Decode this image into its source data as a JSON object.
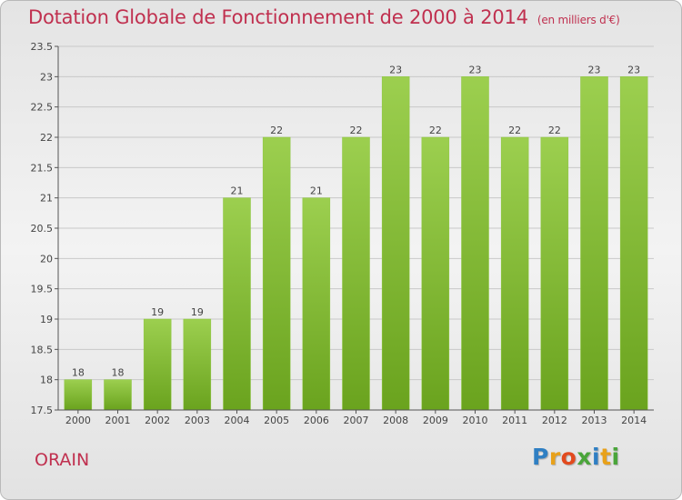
{
  "title": "Dotation Globale de Fonctionnement de 2000 à 2014",
  "unit_note": "(en milliers d'€)",
  "commune": "ORAIN",
  "logo_text": [
    "P",
    "r",
    "o",
    "x",
    "i",
    "t",
    "i"
  ],
  "colors": {
    "title": "#c0304f",
    "bar_light": "#9ccf4f",
    "bar_dark": "#6aa31e",
    "grid": "#c8c8c8",
    "axis": "#555555"
  },
  "chart_data": {
    "type": "bar",
    "title": "Dotation Globale de Fonctionnement de 2000 à 2014",
    "xlabel": "",
    "ylabel": "",
    "ylim": [
      17.5,
      23.5
    ],
    "yticks": [
      17.5,
      18,
      18.5,
      19,
      19.5,
      20,
      20.5,
      21,
      21.5,
      22,
      22.5,
      23,
      23.5
    ],
    "grid": true,
    "categories": [
      "2000",
      "2001",
      "2002",
      "2003",
      "2004",
      "2005",
      "2006",
      "2007",
      "2008",
      "2009",
      "2010",
      "2011",
      "2012",
      "2013",
      "2014"
    ],
    "values": [
      18,
      18,
      19,
      19,
      21,
      22,
      21,
      22,
      23,
      22,
      23,
      22,
      22,
      23,
      23
    ]
  }
}
